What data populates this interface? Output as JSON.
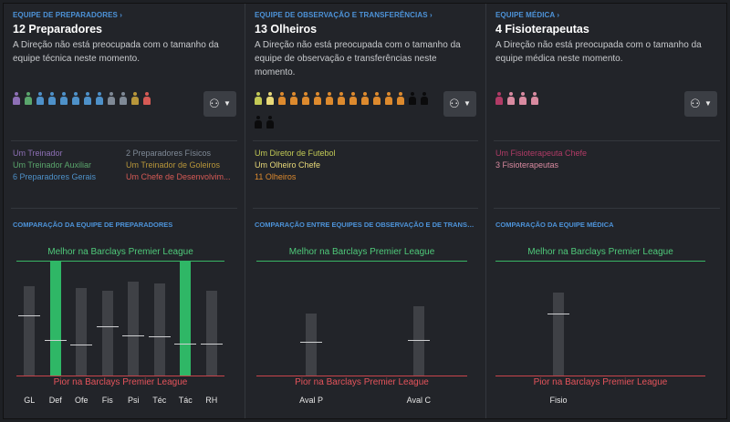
{
  "colors": {
    "treinador": "#8d6fb5",
    "auxiliar": "#5aa66c",
    "gerais": "#4e91c9",
    "fisicos": "#7f8996",
    "goleiros": "#b8963a",
    "desenvolvimento": "#d65a55",
    "diretor": "#c2c955",
    "chefe_olheiro": "#e8d979",
    "olheiros": "#dd8a2e",
    "vazio": "#0b0b0c",
    "fisio_chefe": "#b13b66",
    "fisios": "#d98aa0",
    "best": "#2fb766",
    "worst": "#c9444b",
    "link": "#4d93d9"
  },
  "panels": [
    {
      "link": "EQUIPE DE PREPARADORES",
      "title": "12 Preparadores",
      "desc": "A Direção não está preocupada com o tamanho da equipe técnica neste momento.",
      "people": [
        "treinador",
        "auxiliar",
        "gerais",
        "gerais",
        "gerais",
        "gerais",
        "gerais",
        "gerais",
        "fisicos",
        "fisicos",
        "goleiros",
        "desenvolvimento"
      ],
      "roles_left": [
        {
          "text": "Um Treinador",
          "color": "treinador"
        },
        {
          "text": "Um Treinador Auxiliar",
          "color": "auxiliar"
        },
        {
          "text": "6 Preparadores Gerais",
          "color": "gerais"
        }
      ],
      "roles_right": [
        {
          "text": "2 Preparadores Físicos",
          "color": "fisicos"
        },
        {
          "text": "Um Treinador de Goleiros",
          "color": "goleiros"
        },
        {
          "text": "Um Chefe de Desenvolvim...",
          "color": "desenvolvimento"
        }
      ],
      "chart_title": "COMPARAÇÃO DA EQUIPE DE PREPARADORES"
    },
    {
      "link": "EQUIPE DE OBSERVAÇÃO E TRANSFERÊNCIAS",
      "title": "13 Olheiros",
      "desc": "A Direção não está preocupada com o tamanho da equipe de observação e transferências neste momento.",
      "people": [
        "diretor",
        "chefe_olheiro",
        "olheiros",
        "olheiros",
        "olheiros",
        "olheiros",
        "olheiros",
        "olheiros",
        "olheiros",
        "olheiros",
        "olheiros",
        "olheiros",
        "olheiros",
        "vazio",
        "vazio",
        "vazio",
        "vazio"
      ],
      "roles_left": [
        {
          "text": "Um Diretor de Futebol",
          "color": "diretor"
        },
        {
          "text": "Um Olheiro Chefe",
          "color": "chefe_olheiro"
        },
        {
          "text": "11 Olheiros",
          "color": "olheiros"
        }
      ],
      "roles_right": [],
      "chart_title": "COMPARAÇÃO ENTRE EQUIPES DE OBSERVAÇÃO E DE TRANSFERÊNCIAS"
    },
    {
      "link": "EQUIPE MÉDICA",
      "title": "4 Fisioterapeutas",
      "desc": "A Direção não está preocupada com o tamanho da equipe médica neste momento.",
      "people": [
        "fisio_chefe",
        "fisios",
        "fisios",
        "fisios"
      ],
      "roles_left": [
        {
          "text": "Um Fisioterapeuta Chefe",
          "color": "fisio_chefe"
        },
        {
          "text": "3 Fisioterapeutas",
          "color": "fisios"
        }
      ],
      "roles_right": [],
      "chart_title": "COMPARAÇÃO DA EQUIPE MÉDICA"
    }
  ],
  "chart_data": [
    {
      "type": "bar",
      "title": "COMPARAÇÃO DA EQUIPE DE PREPARADORES",
      "best_label": "Melhor na Barclays Premier League",
      "worst_label": "Pior na Barclays Premier League",
      "categories": [
        "GL",
        "Def",
        "Ofe",
        "Fis",
        "Psi",
        "Téc",
        "Tác",
        "RH"
      ],
      "values": [
        78,
        100,
        76,
        74,
        82,
        80,
        100,
        74
      ],
      "averages": [
        52,
        31,
        27,
        43,
        35,
        34,
        28,
        28
      ],
      "top": [
        false,
        true,
        false,
        false,
        false,
        false,
        true,
        false
      ],
      "ylim": [
        0,
        100
      ]
    },
    {
      "type": "bar",
      "title": "COMPARAÇÃO ENTRE EQUIPES DE OBSERVAÇÃO E DE TRANSFERÊNCIAS",
      "best_label": "Melhor na Barclays Premier League",
      "worst_label": "Pior na Barclays Premier League",
      "categories": [
        "Aval P",
        "Aval C"
      ],
      "values": [
        54,
        60
      ],
      "averages": [
        29,
        31
      ],
      "top": [
        false,
        false
      ],
      "ylim": [
        0,
        100
      ]
    },
    {
      "type": "bar",
      "title": "COMPARAÇÃO DA EQUIPE MÉDICA",
      "best_label": "Melhor na Barclays Premier League",
      "worst_label": "Pior na Barclays Premier League",
      "categories": [
        "Fisio"
      ],
      "values": [
        72
      ],
      "averages": [
        54
      ],
      "top": [
        false
      ],
      "ylim": [
        0,
        100
      ]
    }
  ]
}
